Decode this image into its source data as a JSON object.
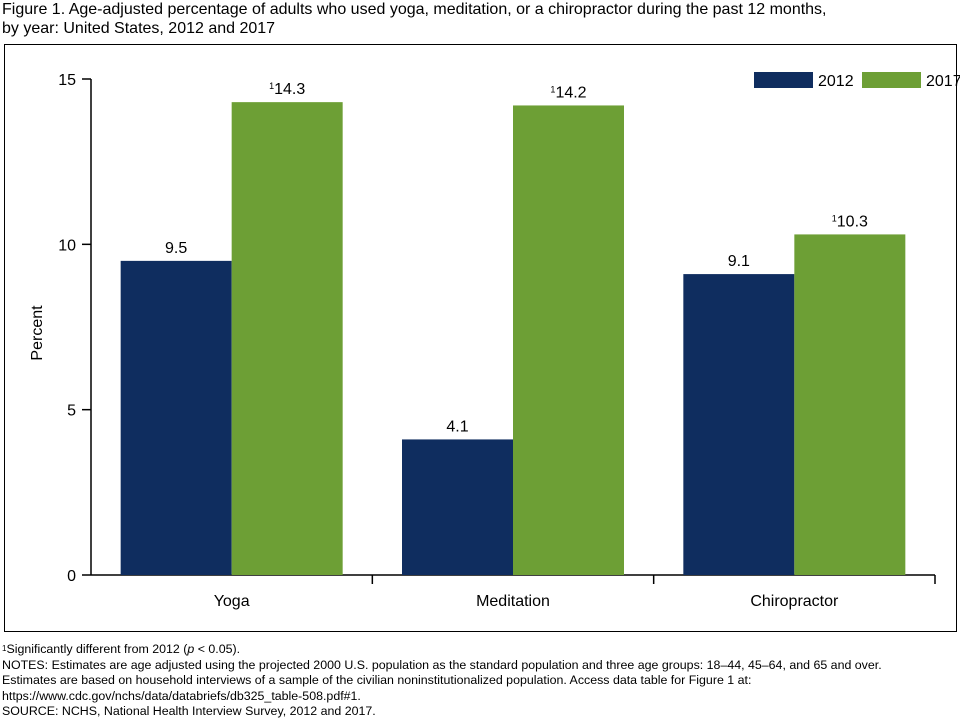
{
  "figure": {
    "title_line1": "Figure 1. Age-adjusted percentage of adults who used yoga, meditation, or a chiropractor during the past 12 months,",
    "title_line2": "by year: United States, 2012 and 2017"
  },
  "chart_data": {
    "type": "bar",
    "categories": [
      "Yoga",
      "Meditation",
      "Chiropractor"
    ],
    "series": [
      {
        "name": "2012",
        "values": [
          9.5,
          4.1,
          9.1
        ],
        "labels": [
          "9.5",
          "4.1",
          "9.1"
        ],
        "footnote": [
          "",
          "",
          ""
        ],
        "color": "#0f2d5f"
      },
      {
        "name": "2017",
        "values": [
          14.3,
          14.2,
          10.3
        ],
        "labels": [
          "14.3",
          "14.2",
          "10.3"
        ],
        "footnote": [
          "1",
          "1",
          "1"
        ],
        "color": "#6d9f35"
      }
    ],
    "ylabel": "Percent",
    "xlabel": "",
    "ylim": [
      0,
      15
    ],
    "yticks": [
      0,
      5,
      10,
      15
    ],
    "grid": false,
    "legend_position": "top-right"
  },
  "footnotes": {
    "sig_marker": "1",
    "sig_text_a": "Significantly different from 2012 (",
    "sig_p": "p",
    "sig_text_b": " < 0.05).",
    "notes_line1": "NOTES: Estimates are age adjusted using the projected 2000 U.S. population as the standard population and three age groups: 18–44, 45–64, and 65 and over.",
    "notes_line2": "Estimates are based on household interviews of a sample of the civilian noninstitutionalized population. Access data table for Figure 1 at:",
    "notes_line3": "https://www.cdc.gov/nchs/data/databriefs/db325_table-508.pdf#1.",
    "source": "SOURCE: NCHS, National Health Interview Survey, 2012 and 2017."
  }
}
